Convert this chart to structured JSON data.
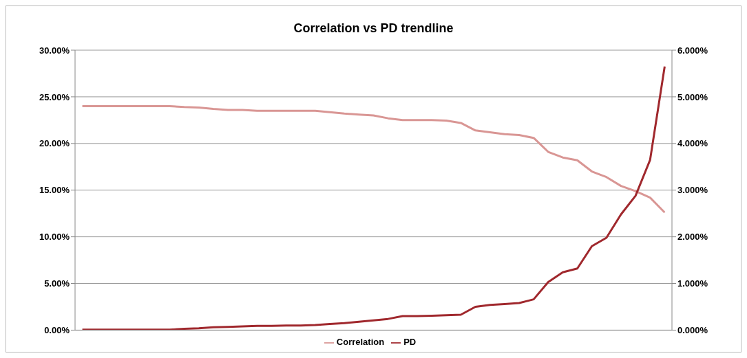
{
  "chart_data": {
    "type": "line",
    "title": "Correlation vs PD trendline",
    "categories": [
      null,
      null,
      null,
      null,
      null,
      null,
      null,
      null,
      null,
      null,
      null,
      null,
      null,
      null,
      null,
      null,
      null,
      null,
      null,
      null,
      null,
      null,
      null,
      null,
      null,
      null,
      null,
      null,
      null,
      null,
      null,
      null,
      null,
      null,
      null,
      null,
      null,
      null,
      null,
      null,
      null
    ],
    "series": [
      {
        "name": "Correlation",
        "color": "#d99694",
        "values": [
          24.0,
          24.0,
          24.0,
          24.0,
          24.0,
          24.0,
          24.0,
          23.9,
          23.85,
          23.7,
          23.6,
          23.6,
          23.5,
          23.5,
          23.5,
          23.5,
          23.5,
          23.35,
          23.2,
          23.1,
          23.0,
          22.7,
          22.5,
          22.5,
          22.5,
          22.45,
          22.2,
          21.4,
          21.2,
          21.0,
          20.9,
          20.6,
          19.1,
          18.5,
          18.2,
          17.0,
          16.4,
          15.45,
          14.9,
          14.2,
          12.6
        ]
      },
      {
        "name": "PD",
        "color": "#a0282d",
        "axis": "y2",
        "values": [
          0.01,
          0.01,
          0.01,
          0.01,
          0.01,
          0.01,
          0.01,
          0.03,
          0.04,
          0.06,
          0.07,
          0.08,
          0.09,
          0.09,
          0.1,
          0.1,
          0.11,
          0.13,
          0.15,
          0.18,
          0.21,
          0.24,
          0.3,
          0.3,
          0.31,
          0.32,
          0.33,
          0.5,
          0.54,
          0.56,
          0.58,
          0.66,
          1.03,
          1.24,
          1.32,
          1.8,
          1.98,
          2.48,
          2.88,
          3.65,
          5.65
        ]
      }
    ],
    "ylim": [
      0,
      30
    ],
    "yticks": [
      {
        "value": 0,
        "label": "0.00%"
      },
      {
        "value": 5,
        "label": "5.00%"
      },
      {
        "value": 10,
        "label": "10.00%"
      },
      {
        "value": 15,
        "label": "15.00%"
      },
      {
        "value": 20,
        "label": "20.00%"
      },
      {
        "value": 25,
        "label": "25.00%"
      },
      {
        "value": 30,
        "label": "30.00%"
      }
    ],
    "y2lim": [
      0,
      6
    ],
    "y2ticks": [
      {
        "value": 0,
        "label": "0.000%"
      },
      {
        "value": 1,
        "label": "1.000%"
      },
      {
        "value": 2,
        "label": "2.000%"
      },
      {
        "value": 3,
        "label": "3.000%"
      },
      {
        "value": 4,
        "label": "4.000%"
      },
      {
        "value": 5,
        "label": "5.000%"
      },
      {
        "value": 6,
        "label": "6.000%"
      }
    ],
    "grid": "y",
    "legend": "bottom",
    "marker": "none",
    "line_style": "solid"
  }
}
